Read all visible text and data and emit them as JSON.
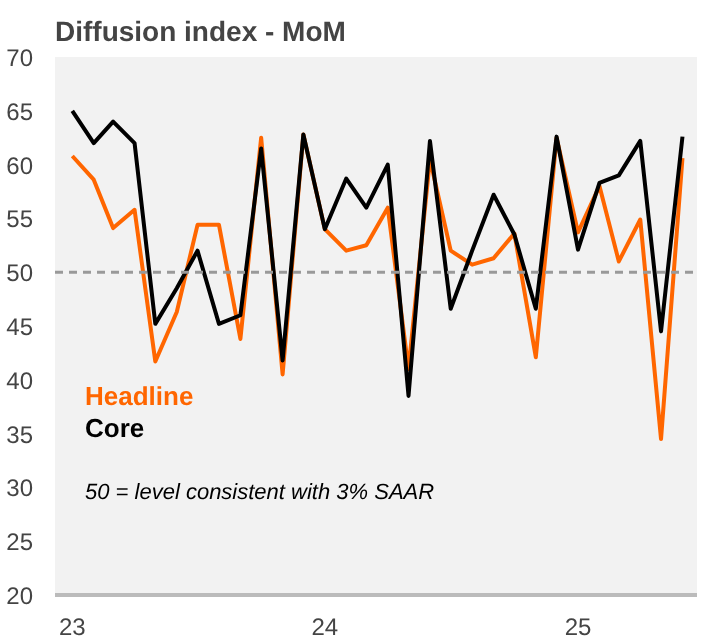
{
  "chart_data": {
    "type": "line",
    "title": "Diffusion index - MoM",
    "x": [
      "2023-01",
      "2023-02",
      "2023-03",
      "2023-04",
      "2023-05",
      "2023-06",
      "2023-07",
      "2023-08",
      "2023-09",
      "2023-10",
      "2023-11",
      "2023-12",
      "2024-01",
      "2024-02",
      "2024-03",
      "2024-04",
      "2024-05",
      "2024-06",
      "2024-07",
      "2024-08",
      "2024-09",
      "2024-10",
      "2024-11",
      "2024-12",
      "2025-01",
      "2025-02",
      "2025-03",
      "2025-04",
      "2025-05",
      "2025-06"
    ],
    "series": [
      {
        "name": "Headline",
        "color": "#ff6600",
        "values": [
          60.8,
          58.6,
          54.1,
          55.8,
          41.7,
          46.3,
          54.4,
          54.4,
          43.8,
          62.5,
          40.5,
          62.8,
          54,
          52,
          52.5,
          56,
          41,
          60.5,
          52,
          50.7,
          51.3,
          53.6,
          42.1,
          62.5,
          53.7,
          58,
          51,
          54.9,
          34.5,
          60.6
        ]
      },
      {
        "name": "Core",
        "color": "#000000",
        "values": [
          65,
          62,
          64,
          62,
          45.2,
          48.5,
          52,
          45.2,
          46,
          61.5,
          41.8,
          62.8,
          54,
          58.7,
          56,
          60,
          38.5,
          62.2,
          46.6,
          52,
          57.2,
          53.5,
          46.6,
          62.6,
          52.1,
          58.3,
          59,
          62.2,
          44.5,
          62.6
        ]
      }
    ],
    "xlim": [
      "2022-12-07",
      "2025-06-22"
    ],
    "xticks": [
      {
        "value": "2023-01",
        "label": "23"
      },
      {
        "value": "2024-01",
        "label": "24"
      },
      {
        "value": "2025-01",
        "label": "25"
      }
    ],
    "ylim": [
      20,
      70
    ],
    "yticks": [
      20,
      25,
      30,
      35,
      40,
      45,
      50,
      55,
      60,
      65,
      70
    ],
    "ref_lines": [
      {
        "axis": "y",
        "value": 50,
        "color": "#999999",
        "line_style": "dashed"
      }
    ],
    "annotations": [
      "50 = level consistent with 3% SAAR"
    ],
    "legend": "left",
    "grid": false
  }
}
